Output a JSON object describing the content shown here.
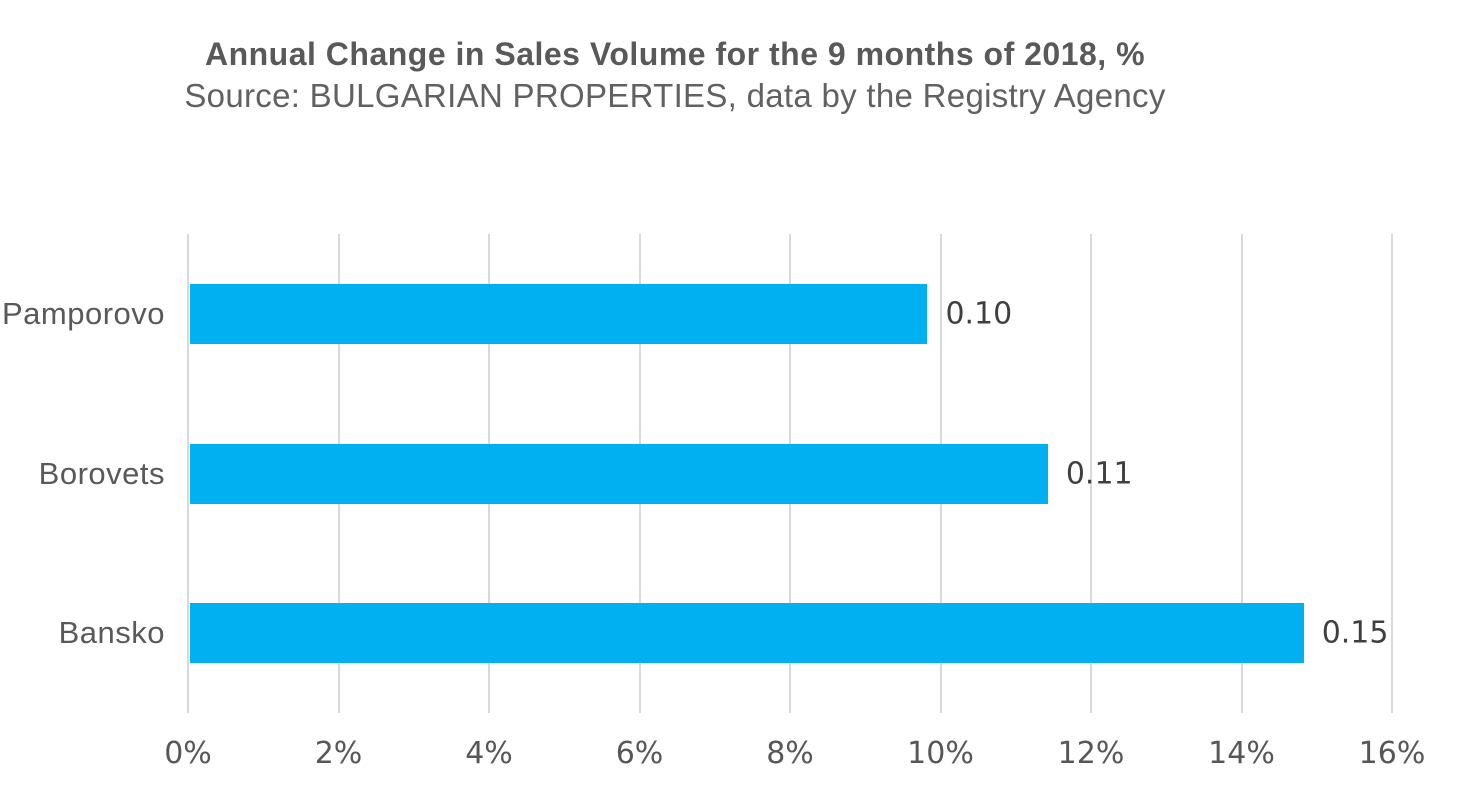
{
  "chart_data": {
    "type": "bar",
    "orientation": "horizontal",
    "title": "Annual Change in Sales Volume for the 9 months of 2018, %",
    "subtitle": "Source: BULGARIAN PROPERTIES, data by the Registry Agency",
    "categories": [
      "Pamporovo",
      "Borovets",
      "Bansko"
    ],
    "values_pct": [
      9.8,
      11.4,
      14.8
    ],
    "data_labels": [
      "0.10",
      "0.11",
      "0.15"
    ],
    "xlabel": "",
    "ylabel": "",
    "x_axis": {
      "min": 0,
      "max": 16,
      "tick_step": 2,
      "tick_labels": [
        "0%",
        "2%",
        "4%",
        "6%",
        "8%",
        "10%",
        "12%",
        "14%",
        "16%"
      ]
    },
    "grid": "vertical-only",
    "legend": "none",
    "colors": {
      "bar": "#00B0F0",
      "gridline": "#D9D9D9",
      "title_text": "#595959",
      "subtitle_text": "#616161",
      "category_text": "#595959",
      "tick_text": "#575757",
      "data_label_text": "#3F3F3F",
      "background": "#FFFFFF"
    }
  }
}
